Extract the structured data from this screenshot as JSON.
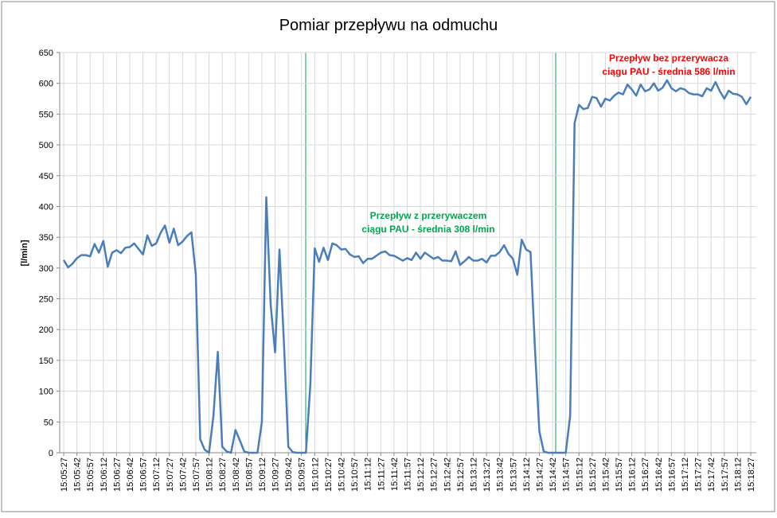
{
  "chart_data": {
    "type": "line",
    "title": "Pomiar przepływu na odmuchu",
    "y_label": "[l/min]",
    "categories": [
      "15:05:27",
      null,
      null,
      "15:05:42",
      null,
      null,
      "15:05:57",
      null,
      null,
      "15:06:12",
      null,
      null,
      "15:06:27",
      null,
      null,
      "15:06:42",
      null,
      null,
      "15:06:57",
      null,
      null,
      "15:07:12",
      null,
      null,
      "15:07:27",
      null,
      null,
      "15:07:42",
      null,
      null,
      "15:07:57",
      null,
      null,
      "15:08:12",
      null,
      null,
      "15:08:27",
      null,
      null,
      "15:08:42",
      null,
      null,
      "15:08:57",
      null,
      null,
      "15:09:12",
      null,
      null,
      "15:09:27",
      null,
      null,
      "15:09:42",
      null,
      null,
      "15:09:57",
      null,
      null,
      "15:10:12",
      null,
      null,
      "15:10:27",
      null,
      null,
      "15:10:42",
      null,
      null,
      "15:10:57",
      null,
      null,
      "15:11:12",
      null,
      null,
      "15:11:27",
      null,
      null,
      "15:11:42",
      null,
      null,
      "15:11:57",
      null,
      null,
      "15:12:12",
      null,
      null,
      "15:12:27",
      null,
      null,
      "15:12:42",
      null,
      null,
      "15:12:57",
      null,
      null,
      "15:13:12",
      null,
      null,
      "15:13:27",
      null,
      null,
      "15:13:42",
      null,
      null,
      "15:13:57",
      null,
      null,
      "15:14:12",
      null,
      null,
      "15:14:27",
      null,
      null,
      "15:14:42",
      null,
      null,
      "15:14:57",
      null,
      null,
      "15:15:12",
      null,
      null,
      "15:15:27",
      null,
      null,
      "15:15:42",
      null,
      null,
      "15:15:57",
      null,
      null,
      "15:16:12",
      null,
      null,
      "15:16:27",
      null,
      null,
      "15:16:42",
      null,
      null,
      "15:16:57",
      null,
      null,
      "15:17:12",
      null,
      null,
      "15:17:27",
      null,
      null,
      "15:17:42",
      null,
      null,
      "15:17:57",
      null,
      null,
      "15:18:12",
      null,
      null,
      "15:18:27"
    ],
    "values": [
      313,
      301,
      307,
      316,
      321,
      321,
      319,
      339,
      325,
      344,
      302,
      325,
      329,
      324,
      333,
      334,
      340,
      331,
      322,
      353,
      336,
      340,
      357,
      369,
      341,
      364,
      337,
      343,
      352,
      358,
      290,
      22,
      5,
      0,
      60,
      164,
      10,
      2,
      0,
      37,
      20,
      2,
      0,
      0,
      0,
      50,
      415,
      240,
      163,
      330,
      180,
      10,
      1,
      0,
      0,
      0,
      110,
      332,
      310,
      333,
      313,
      340,
      337,
      330,
      331,
      322,
      318,
      319,
      308,
      315,
      315,
      320,
      325,
      327,
      321,
      320,
      316,
      312,
      316,
      313,
      325,
      315,
      325,
      320,
      315,
      318,
      312,
      312,
      311,
      327,
      305,
      311,
      318,
      312,
      312,
      315,
      309,
      320,
      320,
      326,
      337,
      323,
      315,
      289,
      346,
      330,
      326,
      170,
      35,
      2,
      0,
      0,
      0,
      0,
      0,
      60,
      535,
      565,
      558,
      560,
      578,
      576,
      562,
      575,
      572,
      580,
      585,
      582,
      598,
      590,
      580,
      598,
      587,
      590,
      600,
      588,
      593,
      605,
      592,
      587,
      592,
      590,
      584,
      582,
      582,
      579,
      592,
      588,
      602,
      587,
      575,
      588,
      583,
      582,
      578,
      566,
      578
    ],
    "color": "#4a7ebb",
    "ylim": [
      0,
      650
    ],
    "yticks": [
      0,
      50,
      100,
      150,
      200,
      250,
      300,
      350,
      400,
      450,
      500,
      550,
      600,
      650
    ],
    "grid": true,
    "annotations": [
      {
        "lines": [
          "Przepływ z przerywaczem",
          "ciągu PAU - średnia 308 l/min"
        ],
        "color": "#00a650"
      },
      {
        "lines": [
          "Przepływ bez przerywacza",
          "ciągu PAU - średnia 586 l/min"
        ],
        "color": "#ff0000"
      }
    ]
  }
}
